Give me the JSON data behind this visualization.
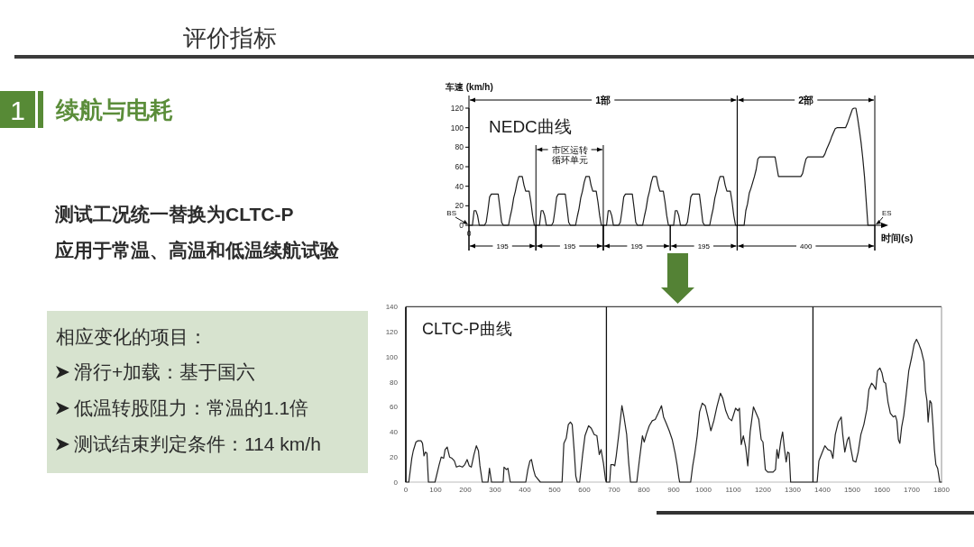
{
  "chart_data": [
    {
      "type": "other",
      "title": "评价指标",
      "subtitle": "续航与电耗",
      "annotations": [
        "1",
        "测试工况统一替换为CLTC-P",
        "应用于常温、高温和低温续航试验",
        "相应变化的项目：",
        "滑行+加载：基于国六",
        "低温转股阻力：常温的1.1倍",
        "测试结束判定条件：114 km/h"
      ]
    },
    {
      "type": "line",
      "title": "NEDC曲线",
      "xlabel": "时间(s)",
      "ylabel": "车速 (km/h)",
      "categories": [
        "0",
        null,
        null,
        null,
        null,
        null,
        null,
        null,
        null,
        null,
        null,
        null,
        null,
        null,
        null,
        null,
        null,
        null,
        null,
        null,
        null,
        null,
        null,
        null,
        null,
        null,
        null,
        null,
        null,
        null,
        null,
        null,
        null,
        null,
        null,
        null,
        null,
        null,
        null,
        null,
        null,
        null,
        null,
        null,
        null,
        null,
        null,
        null,
        null,
        null,
        null,
        null,
        null,
        null,
        null,
        null,
        null,
        null,
        null,
        null,
        null,
        null,
        null,
        null,
        null,
        null,
        null,
        null,
        null,
        null,
        null,
        null,
        null,
        null,
        null,
        null,
        null,
        null,
        null,
        null,
        null,
        null,
        null,
        null,
        null,
        null,
        null,
        null,
        null,
        null,
        null,
        null,
        null,
        null,
        null,
        null,
        null,
        null,
        null,
        null,
        null,
        null,
        null,
        null,
        null,
        null,
        null,
        null,
        null,
        null,
        null,
        null,
        null,
        null,
        null,
        null,
        null,
        null,
        null,
        null,
        null,
        null,
        null,
        null,
        null,
        null,
        null,
        null,
        null,
        null,
        null,
        null,
        null,
        null,
        null,
        null,
        null,
        null,
        null,
        null,
        null,
        null,
        null,
        null,
        null,
        null,
        null,
        null,
        null,
        null,
        null,
        null,
        null,
        null,
        null,
        null,
        null,
        null,
        null,
        null,
        null,
        null,
        null,
        null,
        null,
        null,
        null,
        null,
        null,
        null,
        null,
        null,
        null,
        null,
        null,
        null,
        null,
        null,
        null,
        null,
        null,
        null,
        null,
        null,
        null,
        null,
        null,
        null,
        null,
        null,
        null,
        null,
        null,
        null,
        null,
        null,
        null,
        null,
        null,
        null,
        null,
        null,
        null,
        null,
        null,
        null,
        null,
        null,
        null,
        null,
        null,
        null,
        null,
        null,
        null,
        null,
        null,
        null,
        null,
        null,
        null,
        null,
        null,
        null,
        null,
        null,
        null,
        null,
        null,
        null,
        null,
        null,
        null,
        null,
        null,
        null,
        null
      ],
      "series": [
        {
          "color": "#1c1c1c",
          "values": [
            0,
            0,
            0,
            15,
            15,
            10,
            0,
            0,
            0,
            0,
            3,
            15,
            29,
            32,
            32,
            32,
            32,
            32,
            18,
            3,
            0,
            0,
            0,
            0,
            9,
            17,
            28,
            35,
            44,
            50,
            50,
            50,
            41,
            35,
            35,
            35,
            24,
            10,
            0,
            0,
            0,
            0,
            15,
            15,
            10,
            0,
            0,
            0,
            0,
            3,
            15,
            29,
            32,
            32,
            32,
            32,
            32,
            18,
            3,
            0,
            0,
            0,
            0,
            9,
            17,
            28,
            35,
            44,
            50,
            50,
            50,
            41,
            35,
            35,
            35,
            24,
            10,
            0,
            0,
            0,
            0,
            15,
            15,
            10,
            0,
            0,
            0,
            0,
            3,
            15,
            29,
            32,
            32,
            32,
            32,
            32,
            18,
            3,
            0,
            0,
            0,
            0,
            9,
            17,
            28,
            35,
            44,
            50,
            50,
            50,
            41,
            35,
            35,
            35,
            24,
            10,
            0,
            0,
            0,
            0,
            15,
            15,
            10,
            0,
            0,
            0,
            0,
            3,
            15,
            29,
            32,
            32,
            32,
            32,
            32,
            18,
            3,
            0,
            0,
            0,
            0,
            9,
            17,
            28,
            35,
            44,
            50,
            50,
            50,
            41,
            35,
            35,
            35,
            24,
            10,
            0,
            0,
            0,
            0,
            0,
            0,
            15,
            22,
            33,
            38,
            44,
            50,
            57,
            68,
            70,
            70,
            70,
            70,
            70,
            70,
            70,
            70,
            70,
            70,
            60,
            50,
            50,
            50,
            50,
            50,
            50,
            50,
            50,
            50,
            50,
            50,
            50,
            50,
            50,
            53,
            61,
            68,
            70,
            70,
            70,
            70,
            70,
            70,
            70,
            70,
            70,
            70,
            73,
            78,
            82,
            86,
            91,
            95,
            99,
            100,
            100,
            100,
            100,
            100,
            100,
            104,
            109,
            114,
            119,
            120,
            120,
            110,
            98,
            85,
            69,
            50,
            25,
            0,
            0,
            0,
            0,
            0
          ]
        }
      ],
      "ylim": [
        0,
        120
      ],
      "yticks": [
        0,
        20,
        40,
        60,
        80,
        100,
        120
      ],
      "annotations": [
        "BS",
        "ES",
        "1部",
        "2部",
        "195",
        "195",
        "195",
        "195",
        "400",
        "市区运转循环单元"
      ]
    },
    {
      "type": "line",
      "title": "CLTC-P曲线",
      "x": [
        0,
        10,
        20,
        25,
        34,
        41,
        51,
        56,
        61,
        66,
        71,
        76,
        98,
        112,
        119,
        127,
        132,
        139,
        147,
        155,
        163,
        170,
        180,
        190,
        198,
        206,
        213,
        220,
        229,
        237,
        244,
        249,
        257,
        276,
        281,
        288,
        327,
        330,
        338,
        343,
        351,
        403,
        410,
        417,
        422,
        429,
        435,
        452,
        525,
        531,
        539,
        546,
        553,
        559,
        566,
        571,
        576,
        584,
        594,
        602,
        614,
        623,
        633,
        642,
        650,
        656,
        664,
        671,
        674,
        685,
        689,
        697,
        702,
        707,
        716,
        726,
        733,
        742,
        749,
        755,
        776,
        785,
        795,
        801,
        808,
        818,
        828,
        838,
        848,
        859,
        866,
        875,
        885,
        895,
        905,
        912,
        917,
        920,
        957,
        964,
        971,
        979,
        987,
        996,
        1006,
        1015,
        1025,
        1035,
        1045,
        1057,
        1065,
        1075,
        1085,
        1095,
        1108,
        1116,
        1121,
        1127,
        1134,
        1142,
        1149,
        1157,
        1168,
        1179,
        1186,
        1194,
        1200,
        1208,
        1216,
        1234,
        1242,
        1247,
        1252,
        1260,
        1266,
        1272,
        1278,
        1283,
        1288,
        1293,
        1382,
        1388,
        1398,
        1408,
        1418,
        1428,
        1435,
        1443,
        1453,
        1463,
        1468,
        1475,
        1484,
        1489,
        1495,
        1503,
        1512,
        1520,
        1529,
        1539,
        1549,
        1556,
        1565,
        1572,
        1579,
        1585,
        1593,
        1600,
        1606,
        1612,
        1620,
        1628,
        1638,
        1645,
        1650,
        1655,
        1660,
        1666,
        1673,
        1680,
        1690,
        1700,
        1708,
        1716,
        1724,
        1732,
        1741,
        1746,
        1751,
        1755,
        1761,
        1766,
        1771,
        1776,
        1781,
        1787,
        1791,
        1794,
        1800
      ],
      "series": [
        {
          "color": "#222222",
          "values": [
            0,
            0,
            19,
            25,
            32,
            33,
            33,
            31,
            21,
            24,
            23,
            0,
            0,
            14,
            20,
            19,
            26,
            28,
            20,
            19,
            17,
            12,
            13,
            12,
            14,
            18,
            13,
            12,
            22,
            29,
            25,
            13,
            0,
            0,
            11,
            0,
            0,
            12,
            10,
            11,
            0,
            0,
            10,
            17,
            18,
            10,
            5,
            0,
            0,
            31,
            35,
            46,
            48,
            46,
            24,
            5,
            0,
            0,
            22,
            37,
            45,
            43,
            38,
            37,
            22,
            26,
            15,
            2,
            0,
            0,
            14,
            14,
            13,
            21,
            39,
            61,
            52,
            38,
            15,
            0,
            0,
            18,
            37,
            32,
            38,
            45,
            49,
            50,
            55,
            61,
            52,
            47,
            41,
            34,
            23,
            13,
            4,
            0,
            0,
            13,
            23,
            37,
            56,
            63,
            61,
            52,
            41,
            49,
            60,
            71,
            67,
            57,
            51,
            49,
            59,
            57,
            59,
            30,
            37,
            28,
            13,
            40,
            60,
            54,
            50,
            34,
            32,
            10,
            8,
            8,
            10,
            26,
            19,
            33,
            40,
            27,
            16,
            24,
            23,
            0,
            0,
            17,
            23,
            29,
            26,
            25,
            19,
            38,
            48,
            52,
            38,
            24,
            34,
            36,
            27,
            17,
            16,
            24,
            38,
            46,
            58,
            74,
            79,
            77,
            74,
            89,
            91,
            87,
            80,
            79,
            64,
            55,
            52,
            53,
            49,
            34,
            31,
            44,
            53,
            67,
            89,
            100,
            110,
            114,
            110,
            105,
            96,
            73,
            65,
            48,
            65,
            63,
            46,
            26,
            14,
            11,
            5,
            0,
            0
          ]
        }
      ],
      "xlim": [
        0,
        1800
      ],
      "ylim": [
        0,
        140
      ],
      "xticks": [
        0,
        100,
        200,
        300,
        400,
        500,
        600,
        700,
        800,
        900,
        1000,
        1100,
        1200,
        1300,
        1400,
        1500,
        1600,
        1700,
        1800
      ],
      "yticks": [
        0,
        20,
        40,
        60,
        80,
        100,
        120,
        140
      ],
      "ref_lines": [
        {
          "axis": "x",
          "value": 674
        },
        {
          "axis": "x",
          "value": 1368
        },
        {
          "axis": "x",
          "value": 1800,
          "color": "#aaaaaa"
        }
      ]
    }
  ]
}
